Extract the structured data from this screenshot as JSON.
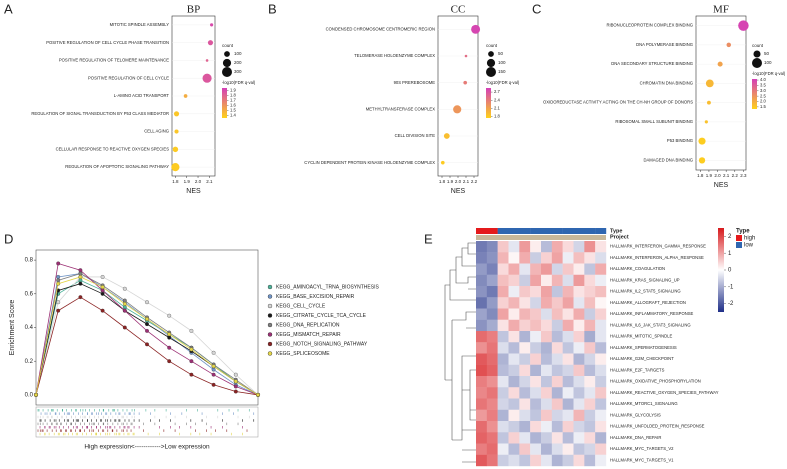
{
  "chart_data": [
    {
      "type": "dot",
      "panel": "A",
      "title": "BP",
      "xlabel": "NES",
      "categories": [
        "MITOTIC SPINDLE ASSEMBLY",
        "POSITIVE REGULATION OF CELL CYCLE PHASE TRANSITION",
        "POSITIVE REGULATION OF TELOMERE MAINTENANCE",
        "POSITIVE REGULATION OF CELL CYCLE",
        "L-AMINO ACID TRANSPORT",
        "REGULATION OF SIGNAL TRANSDUCTION BY P53 CLASS MEDIATOR",
        "CELL AGING",
        "CELLULAR RESPONSE TO REACTIVE OXYGEN SPECIES",
        "REGULATION OF APOPTOTIC SIGNALING PATHWAY"
      ],
      "values": [
        2.12,
        2.11,
        2.08,
        2.08,
        1.89,
        1.81,
        1.81,
        1.8,
        1.8
      ],
      "counts": [
        30,
        80,
        20,
        250,
        40,
        80,
        50,
        90,
        200
      ],
      "colors": [
        1.9,
        1.85,
        1.8,
        1.85,
        1.5,
        1.4,
        1.4,
        1.38,
        1.38
      ],
      "xlim": [
        1.77,
        2.15
      ],
      "xticks": [
        1.8,
        1.9,
        {
          "value": 2.0,
          "label": "2.0"
        },
        2.1
      ],
      "size_title": "count",
      "size_ticks": [
        100,
        200,
        300
      ],
      "color_title": "-log10(FDR q-val)",
      "clim": [
        1.35,
        1.95
      ],
      "cticks": [
        1.9,
        1.8,
        1.7,
        1.6,
        1.5,
        1.4
      ],
      "colormap": [
        "#ffd21a",
        "#d43fb8"
      ]
    },
    {
      "type": "dot",
      "panel": "B",
      "title": "CC",
      "xlabel": "NES",
      "categories": [
        "CONDENSED CHROMOSOME CENTROMERIC REGION",
        "TELOMERASE HOLOENZYME COMPLEX",
        "90S PREREBOSOME",
        "METHYLTRANSFERASE COMPLEX",
        "CELL DIVISION SITE",
        "CYCLIN DEPENDENT PROTEIN KINASE HOLOENZYME COMPLEX"
      ],
      "values": [
        2.22,
        2.1,
        2.09,
        1.99,
        1.86,
        1.81
      ],
      "counts": [
        120,
        10,
        20,
        100,
        50,
        20
      ],
      "colors": [
        2.8,
        2.5,
        2.4,
        2.2,
        1.9,
        1.8
      ],
      "xlim": [
        1.75,
        2.25
      ],
      "xticks": [
        1.8,
        1.9,
        {
          "value": 2.0,
          "label": "2.0"
        },
        2.1,
        2.2
      ],
      "size_title": "count",
      "size_ticks": [
        50,
        100,
        150
      ],
      "color_title": "-log10(FDR q-val)",
      "clim": [
        1.75,
        2.85
      ],
      "cticks": [
        2.7,
        2.4,
        2.1,
        1.8
      ],
      "colormap": [
        "#ffd21a",
        "#d43fb8"
      ]
    },
    {
      "type": "dot",
      "panel": "C",
      "title": "MF",
      "xlabel": "NES",
      "categories": [
        "RIBONUCLEOPROTEIN COMPLEX BINDING",
        "DNA POLYMERASE BINDING",
        "DNA SECONDARY STRUCTURE BINDING",
        "CHROMATIN DNA BINDING",
        "OXIDOREDUCTASE ACTIVITY ACTING ON THE CH-NH GROUP OF DONORS",
        "RIBOSOMAL SMALL SUBUNIT BINDING",
        "P53 BINDING",
        "DAMAGED DNA BINDING"
      ],
      "values": [
        2.3,
        2.13,
        2.03,
        1.91,
        1.9,
        1.87,
        1.82,
        1.82
      ],
      "counts": [
        110,
        20,
        25,
        60,
        15,
        10,
        50,
        40
      ],
      "colors": [
        4.0,
        2.6,
        2.2,
        1.8,
        1.7,
        1.6,
        1.4,
        1.4
      ],
      "xlim": [
        1.75,
        2.33
      ],
      "xticks": [
        1.8,
        1.9,
        {
          "value": 2.0,
          "label": "2.0"
        },
        2.1,
        2.2,
        2.3
      ],
      "size_title": "count",
      "size_ticks": [
        50,
        100
      ],
      "color_title": "-log10(FDR q-val)",
      "clim": [
        1.3,
        4.1
      ],
      "cticks": [
        {
          "value": 4.0,
          "label": "4.0"
        },
        3.5,
        {
          "value": 3.0,
          "label": "3.0"
        },
        2.5,
        {
          "value": 2.0,
          "label": "2.0"
        },
        1.5
      ],
      "colormap": [
        "#ffd21a",
        "#d43fb8"
      ]
    },
    {
      "type": "line",
      "panel": "D",
      "ylabel": "Enrichment Score",
      "xlabel": "High expression<------------>Low expression",
      "x": [
        0,
        1,
        2,
        3,
        4,
        5,
        6,
        7,
        8,
        9,
        10
      ],
      "xlim": [
        0,
        10
      ],
      "ylim": [
        -0.06,
        0.86
      ],
      "yticks": [
        {
          "value": 0,
          "label": "0.0"
        },
        0.2,
        0.4,
        0.6,
        0.8
      ],
      "series": [
        {
          "name": "KEGG_AMINOACYL_TRNA_BIOSYNTHESIS",
          "color": "#4db39a",
          "values": [
            0,
            0.6,
            0.68,
            0.62,
            0.52,
            0.44,
            0.36,
            0.28,
            0.18,
            0.08,
            0
          ]
        },
        {
          "name": "KEGG_BASE_EXCISION_REPAIR",
          "color": "#6f94c6",
          "values": [
            0,
            0.7,
            0.72,
            0.64,
            0.55,
            0.45,
            0.35,
            0.25,
            0.15,
            0.06,
            0
          ]
        },
        {
          "name": "KEGG_CELL_CYCLE",
          "color": "#d6d6d6",
          "values": [
            0,
            0.55,
            0.7,
            0.7,
            0.63,
            0.55,
            0.47,
            0.38,
            0.25,
            0.12,
            0
          ]
        },
        {
          "name": "KEGG_CITRATE_CYCLE_TCA_CYCLE",
          "color": "#1a1a1a",
          "values": [
            0,
            0.62,
            0.66,
            0.6,
            0.5,
            0.42,
            0.34,
            0.26,
            0.17,
            0.08,
            0
          ]
        },
        {
          "name": "KEGG_DNA_REPLICATION",
          "color": "#7f7f7f",
          "values": [
            0,
            0.68,
            0.72,
            0.65,
            0.56,
            0.46,
            0.37,
            0.28,
            0.18,
            0.09,
            0
          ]
        },
        {
          "name": "KEGG_MISMATCH_REPAIR",
          "color": "#9c2f74",
          "values": [
            0,
            0.78,
            0.74,
            0.62,
            0.5,
            0.38,
            0.28,
            0.2,
            0.12,
            0.05,
            0
          ]
        },
        {
          "name": "KEGG_NOTCH_SIGNALING_PATHWAY",
          "color": "#8b2323",
          "values": [
            0,
            0.5,
            0.58,
            0.5,
            0.4,
            0.3,
            0.2,
            0.12,
            0.06,
            0.02,
            0
          ]
        },
        {
          "name": "KEGG_SPLICEOSOME",
          "color": "#e3d548",
          "values": [
            0,
            0.66,
            0.7,
            0.64,
            0.54,
            0.45,
            0.36,
            0.27,
            0.17,
            0.08,
            0
          ]
        }
      ]
    },
    {
      "type": "heatmap",
      "panel": "E",
      "annotation_labels": [
        "Type",
        "Project"
      ],
      "legend_title": "Type",
      "groups": [
        {
          "name": "high",
          "color": "#e41a1c"
        },
        {
          "name": "low",
          "color": "#2f66b0"
        }
      ],
      "column_groups": [
        "high",
        "high",
        "low",
        "low",
        "low",
        "low",
        "low",
        "low",
        "low",
        "low",
        "low",
        "low"
      ],
      "project_color": "#c8b89a",
      "clim": [
        -2.5,
        2.5
      ],
      "cticks": [
        2,
        1,
        0,
        -1,
        -2
      ],
      "colormap": [
        "#1f2f88",
        "#ffffff",
        "#d7191c"
      ],
      "categories": [
        "HALLMARK_INTERFERON_GAMMA_RESPONSE",
        "HALLMARK_INTERFERON_ALPHA_RESPONSE",
        "HALLMARK_COAGULATION",
        "HALLMARK_KRAS_SIGNALING_UP",
        "HALLMARK_IL2_STAT5_SIGNALING",
        "HALLMARK_ALLOGRAFT_REJECTION",
        "HALLMARK_INFLAMMATORY_RESPONSE",
        "HALLMARK_IL6_JAK_STAT3_SIGNALING",
        "HALLMARK_MITOTIC_SPINDLE",
        "HALLMARK_SPERMATOGENESIS",
        "HALLMARK_G2M_CHECKPOINT",
        "HALLMARK_E2F_TARGETS",
        "HALLMARK_OXIDATIVE_PHOSPHORYLATION",
        "HALLMARK_REACTIVE_OXYGEN_SPECIES_PATHWAY",
        "HALLMARK_MTORC1_SIGNALING",
        "HALLMARK_GLYCOLYSIS",
        "HALLMARK_UNFOLDED_PROTEIN_RESPONSE",
        "HALLMARK_DNA_REPAIR",
        "HALLMARK_MYC_TARGETS_V2",
        "HALLMARK_MYC_TARGETS_V1"
      ],
      "values": [
        [
          -1.6,
          -1.4,
          0.6,
          -0.3,
          1.1,
          0.2,
          -0.8,
          0.9,
          0.4,
          -0.5,
          1.2,
          0.3
        ],
        [
          -1.5,
          -1.3,
          0.8,
          0.1,
          0.9,
          -0.6,
          0.5,
          1.0,
          -0.2,
          0.7,
          0.3,
          -0.4
        ],
        [
          -1.2,
          -1.5,
          0.4,
          0.9,
          -0.3,
          0.8,
          1.1,
          -0.5,
          0.6,
          0.2,
          -0.7,
          0.9
        ],
        [
          -1.4,
          -1.1,
          0.7,
          0.5,
          -0.6,
          1.0,
          0.2,
          0.8,
          -0.4,
          1.1,
          0.4,
          -0.2
        ],
        [
          -1.3,
          -1.6,
          0.9,
          -0.2,
          0.6,
          0.4,
          1.0,
          -0.7,
          0.8,
          0.3,
          0.5,
          0.7
        ],
        [
          -1.7,
          -1.2,
          0.5,
          0.8,
          0.3,
          -0.5,
          0.9,
          0.6,
          1.0,
          -0.3,
          0.7,
          0.1
        ],
        [
          -1.1,
          -1.4,
          1.0,
          0.2,
          0.8,
          0.6,
          -0.4,
          0.7,
          0.3,
          0.9,
          -0.6,
          0.5
        ],
        [
          -1.3,
          -1.0,
          0.3,
          0.9,
          0.5,
          0.7,
          0.4,
          -0.6,
          0.9,
          0.2,
          0.8,
          -0.3
        ],
        [
          1.6,
          1.4,
          -0.7,
          0.3,
          -0.9,
          -0.2,
          0.6,
          -0.8,
          -0.4,
          0.5,
          -1.0,
          -0.3
        ],
        [
          1.2,
          1.5,
          -0.4,
          -0.8,
          0.2,
          -0.6,
          -0.9,
          0.4,
          -0.7,
          -0.2,
          0.6,
          -0.8
        ],
        [
          1.8,
          1.6,
          -0.9,
          -0.3,
          -0.6,
          0.5,
          -0.8,
          -0.4,
          0.3,
          -0.9,
          -0.5,
          0.2
        ],
        [
          1.9,
          1.7,
          -0.8,
          -0.6,
          0.4,
          -0.9,
          -0.3,
          -0.7,
          -0.5,
          0.6,
          -0.8,
          -0.4
        ],
        [
          1.4,
          1.2,
          -0.3,
          -0.9,
          -0.5,
          0.3,
          -0.7,
          0.5,
          -0.8,
          -0.4,
          0.2,
          -0.6
        ],
        [
          1.3,
          1.5,
          -0.6,
          0.4,
          -0.8,
          -0.4,
          0.5,
          -0.9,
          -0.2,
          -0.7,
          -0.3,
          0.6
        ],
        [
          1.5,
          1.3,
          -0.5,
          -0.7,
          0.3,
          -0.8,
          -0.4,
          0.6,
          -0.9,
          -0.3,
          0.5,
          -0.7
        ],
        [
          1.1,
          1.4,
          -0.9,
          0.2,
          -0.4,
          -0.7,
          0.6,
          -0.5,
          -0.3,
          0.8,
          -0.6,
          -0.2
        ],
        [
          1.6,
          1.2,
          -0.4,
          -0.6,
          -0.9,
          0.4,
          -0.2,
          -0.8,
          0.5,
          -0.5,
          -0.7,
          0.3
        ],
        [
          1.7,
          1.5,
          -0.7,
          0.5,
          -0.3,
          -0.9,
          -0.6,
          0.3,
          -0.8,
          -0.2,
          0.4,
          -0.9
        ],
        [
          1.4,
          1.6,
          -0.2,
          -0.8,
          0.6,
          -0.3,
          -0.9,
          -0.4,
          0.2,
          -0.7,
          -0.5,
          0.5
        ],
        [
          1.8,
          1.5,
          -0.6,
          -0.4,
          -0.7,
          0.5,
          -0.3,
          -0.9,
          -0.6,
          0.4,
          -0.8,
          -0.2
        ]
      ]
    }
  ]
}
